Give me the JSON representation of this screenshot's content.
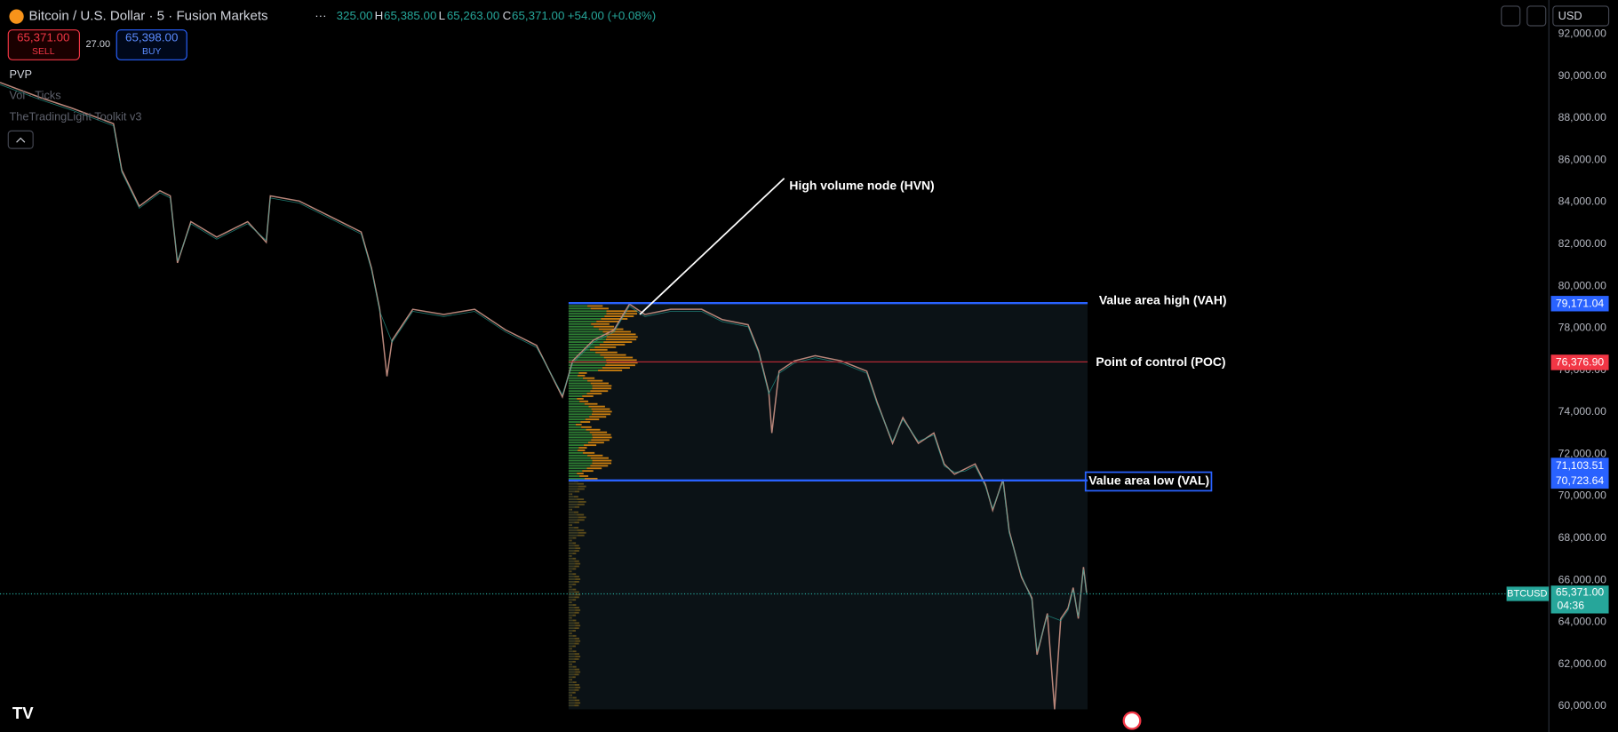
{
  "header": {
    "symbol": "Bitcoin / U.S. Dollar · 5 · Fusion Markets",
    "open": "325.00",
    "high_label": "H",
    "high": "65,385.00",
    "low_label": "L",
    "low": "65,263.00",
    "close_label": "C",
    "close": "65,371.00",
    "change": "+54.00 (+0.08%)"
  },
  "trade": {
    "sell_price": "65,371.00",
    "sell": "SELL",
    "spread": "27.00",
    "buy_price": "65,398.00",
    "buy": "BUY"
  },
  "indicators": [
    "PVP",
    "Vol · Ticks",
    "TheTradingLight Toolkit v3"
  ],
  "currency": "USD",
  "price_axis": [
    "92,000.00",
    "90,000.00",
    "88,000.00",
    "86,000.00",
    "84,000.00",
    "82,000.00",
    "80,000.00",
    "78,000.00",
    "76,000.00",
    "74,000.00",
    "72,000.00",
    "70,000.00",
    "68,000.00",
    "66,000.00",
    "64,000.00",
    "62,000.00",
    "60,000.00"
  ],
  "annotations": {
    "hvn": "High volume node (HVN)",
    "vah": "Value area high (VAH)",
    "poc": "Point of control (POC)",
    "val": "Value area low (VAL)"
  },
  "price_tags": {
    "vah": "79,171.04",
    "poc": "76,376.90",
    "upper": "71,103.51",
    "val": "70,723.64",
    "symbol": "BTCUSD",
    "last": "65,371.00",
    "countdown": "04:36"
  }
}
